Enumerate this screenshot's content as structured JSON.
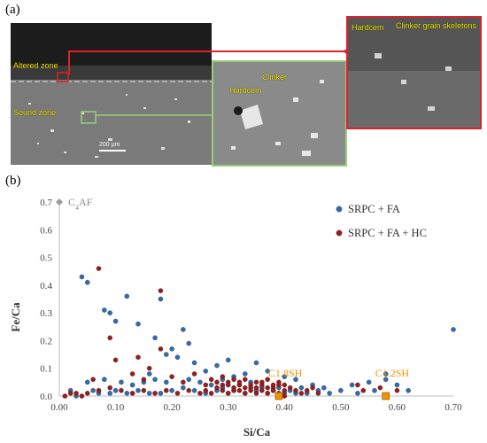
{
  "figure": {
    "panel_a_label": "(a)",
    "panel_b_label": "(b)",
    "colors": {
      "altered_box": "#e0202a",
      "sound_box": "#9ccb7a",
      "annotation_text": "#f2e400",
      "series_srpc_fa": "#2f6db4",
      "series_srpc_fa_hc": "#9b1c1c",
      "reference_point": "#f39200",
      "c4af_marker": "#9a9a9a"
    }
  },
  "micrographs": {
    "main": {
      "altered_zone_label": "Altered zone",
      "sound_zone_label": "Sound zone",
      "scale_bar": "200 µm"
    },
    "sound_zoom": {
      "clinker_label": "Clinker",
      "hardcem_label": "Hardcem"
    },
    "altered_zoom": {
      "hardcem_label": "Hardcem",
      "clinker_skeleton_label": "Clinker grain skeletons"
    }
  },
  "chart_data": {
    "type": "scatter",
    "xlabel": "Si/Ca",
    "ylabel": "Fe/Ca",
    "xlim": [
      0.0,
      0.7
    ],
    "ylim": [
      0.0,
      0.7
    ],
    "xticks": [
      "0.00",
      "0.10",
      "0.20",
      "0.30",
      "0.40",
      "0.50",
      "0.60",
      "0.70"
    ],
    "yticks": [
      "0.0",
      "0.1",
      "0.2",
      "0.3",
      "0.4",
      "0.5",
      "0.6",
      "0.7"
    ],
    "grid": false,
    "legend_position": "top-right",
    "series": [
      {
        "name": "SRPC + FA",
        "color": "#2f6db4",
        "points": [
          [
            0.04,
            0.43
          ],
          [
            0.05,
            0.41
          ],
          [
            0.08,
            0.31
          ],
          [
            0.09,
            0.3
          ],
          [
            0.12,
            0.36
          ],
          [
            0.1,
            0.27
          ],
          [
            0.14,
            0.26
          ],
          [
            0.17,
            0.21
          ],
          [
            0.18,
            0.35
          ],
          [
            0.2,
            0.17
          ],
          [
            0.21,
            0.14
          ],
          [
            0.22,
            0.24
          ],
          [
            0.23,
            0.19
          ],
          [
            0.16,
            0.08
          ],
          [
            0.19,
            0.15
          ],
          [
            0.24,
            0.12
          ],
          [
            0.26,
            0.09
          ],
          [
            0.28,
            0.11
          ],
          [
            0.3,
            0.13
          ],
          [
            0.33,
            0.08
          ],
          [
            0.35,
            0.12
          ],
          [
            0.37,
            0.09
          ],
          [
            0.4,
            0.07
          ],
          [
            0.42,
            0.06
          ],
          [
            0.45,
            0.04
          ],
          [
            0.52,
            0.04
          ],
          [
            0.55,
            0.05
          ],
          [
            0.58,
            0.06
          ],
          [
            0.58,
            0.08
          ],
          [
            0.6,
            0.04
          ],
          [
            0.62,
            0.02
          ],
          [
            0.7,
            0.24
          ],
          [
            0.08,
            0.06
          ],
          [
            0.11,
            0.05
          ],
          [
            0.13,
            0.04
          ],
          [
            0.15,
            0.05
          ],
          [
            0.05,
            0.05
          ],
          [
            0.02,
            0.02
          ],
          [
            0.07,
            0.01
          ],
          [
            0.03,
            0.0
          ],
          [
            0.25,
            0.05
          ],
          [
            0.27,
            0.04
          ],
          [
            0.29,
            0.03
          ],
          [
            0.31,
            0.02
          ],
          [
            0.32,
            0.04
          ],
          [
            0.34,
            0.05
          ],
          [
            0.36,
            0.03
          ],
          [
            0.38,
            0.02
          ],
          [
            0.39,
            0.03
          ],
          [
            0.41,
            0.02
          ],
          [
            0.43,
            0.03
          ],
          [
            0.44,
            0.01
          ],
          [
            0.46,
            0.02
          ],
          [
            0.48,
            0.01
          ],
          [
            0.5,
            0.02
          ],
          [
            0.53,
            0.01
          ],
          [
            0.56,
            0.02
          ],
          [
            0.22,
            0.03
          ],
          [
            0.2,
            0.02
          ],
          [
            0.18,
            0.01
          ],
          [
            0.24,
            0.02
          ],
          [
            0.26,
            0.01
          ],
          [
            0.1,
            0.02
          ],
          [
            0.12,
            0.01
          ],
          [
            0.14,
            0.02
          ],
          [
            0.16,
            0.01
          ],
          [
            0.06,
            0.02
          ],
          [
            0.09,
            0.01
          ],
          [
            0.28,
            0.02
          ],
          [
            0.3,
            0.01
          ],
          [
            0.33,
            0.01
          ],
          [
            0.35,
            0.02
          ],
          [
            0.37,
            0.01
          ],
          [
            0.4,
            0.01
          ],
          [
            0.42,
            0.01
          ],
          [
            0.47,
            0.03
          ],
          [
            0.29,
            0.06
          ],
          [
            0.31,
            0.07
          ],
          [
            0.23,
            0.06
          ],
          [
            0.19,
            0.05
          ],
          [
            0.17,
            0.06
          ]
        ]
      },
      {
        "name": "SRPC + FA + HC",
        "color": "#9b1c1c",
        "points": [
          [
            0.07,
            0.46
          ],
          [
            0.18,
            0.38
          ],
          [
            0.09,
            0.21
          ],
          [
            0.18,
            0.17
          ],
          [
            0.1,
            0.13
          ],
          [
            0.13,
            0.08
          ],
          [
            0.15,
            0.06
          ],
          [
            0.2,
            0.07
          ],
          [
            0.06,
            0.06
          ],
          [
            0.14,
            0.14
          ],
          [
            0.16,
            0.1
          ],
          [
            0.22,
            0.05
          ],
          [
            0.24,
            0.08
          ],
          [
            0.27,
            0.06
          ],
          [
            0.29,
            0.07
          ],
          [
            0.3,
            0.05
          ],
          [
            0.31,
            0.06
          ],
          [
            0.32,
            0.04
          ],
          [
            0.33,
            0.06
          ],
          [
            0.34,
            0.03
          ],
          [
            0.35,
            0.05
          ],
          [
            0.36,
            0.04
          ],
          [
            0.37,
            0.06
          ],
          [
            0.38,
            0.03
          ],
          [
            0.39,
            0.04
          ],
          [
            0.4,
            0.02
          ],
          [
            0.41,
            0.03
          ],
          [
            0.28,
            0.03
          ],
          [
            0.29,
            0.02
          ],
          [
            0.3,
            0.01
          ],
          [
            0.31,
            0.03
          ],
          [
            0.32,
            0.02
          ],
          [
            0.33,
            0.01
          ],
          [
            0.34,
            0.02
          ],
          [
            0.35,
            0.01
          ],
          [
            0.36,
            0.02
          ],
          [
            0.37,
            0.01
          ],
          [
            0.38,
            0.02
          ],
          [
            0.39,
            0.01
          ],
          [
            0.4,
            0.0
          ],
          [
            0.27,
            0.01
          ],
          [
            0.26,
            0.02
          ],
          [
            0.25,
            0.01
          ],
          [
            0.23,
            0.02
          ],
          [
            0.21,
            0.01
          ],
          [
            0.19,
            0.02
          ],
          [
            0.17,
            0.01
          ],
          [
            0.15,
            0.02
          ],
          [
            0.13,
            0.01
          ],
          [
            0.11,
            0.02
          ],
          [
            0.09,
            0.03
          ],
          [
            0.07,
            0.02
          ],
          [
            0.05,
            0.01
          ],
          [
            0.03,
            0.01
          ],
          [
            0.01,
            0.0
          ],
          [
            0.02,
            0.01
          ],
          [
            0.04,
            0.0
          ],
          [
            0.53,
            0.04
          ],
          [
            0.54,
            0.02
          ],
          [
            0.57,
            0.03
          ],
          [
            0.6,
            0.02
          ],
          [
            0.44,
            0.02
          ],
          [
            0.46,
            0.01
          ],
          [
            0.3,
            0.04
          ],
          [
            0.32,
            0.05
          ],
          [
            0.34,
            0.04
          ],
          [
            0.36,
            0.05
          ],
          [
            0.38,
            0.04
          ],
          [
            0.33,
            0.03
          ],
          [
            0.35,
            0.03
          ],
          [
            0.37,
            0.03
          ],
          [
            0.31,
            0.02
          ],
          [
            0.29,
            0.04
          ],
          [
            0.28,
            0.05
          ],
          [
            0.26,
            0.04
          ],
          [
            0.39,
            0.05
          ],
          [
            0.4,
            0.04
          ],
          [
            0.42,
            0.02
          ],
          [
            0.43,
            0.01
          ],
          [
            0.45,
            0.03
          ]
        ]
      }
    ],
    "annotations": [
      {
        "label": "C1.8SH",
        "x": 0.39,
        "y": 0.0,
        "color": "#f39200"
      },
      {
        "label": "C1.2SH",
        "x": 0.58,
        "y": 0.0,
        "color": "#f39200"
      },
      {
        "label": "C4AF",
        "x": 0.0,
        "y": 0.7,
        "color": "#9a9a9a"
      }
    ]
  }
}
